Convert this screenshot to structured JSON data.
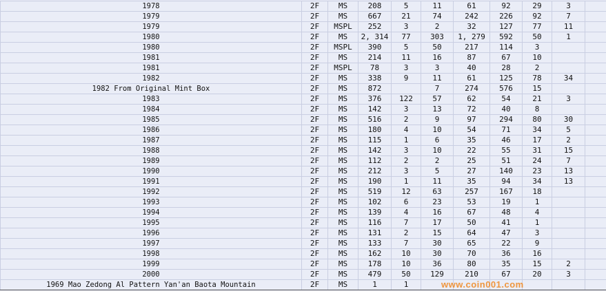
{
  "rows": [
    [
      "1978",
      "2F",
      "MS",
      "208",
      "5",
      "11",
      "61",
      "92",
      "29",
      "3"
    ],
    [
      "1979",
      "2F",
      "MS",
      "667",
      "21",
      "74",
      "242",
      "226",
      "92",
      "7"
    ],
    [
      "1979",
      "2F",
      "MSPL",
      "252",
      "3",
      "2",
      "32",
      "127",
      "77",
      "11"
    ],
    [
      "1980",
      "2F",
      "MS",
      "2, 314",
      "77",
      "303",
      "1, 279",
      "592",
      "50",
      "1"
    ],
    [
      "1980",
      "2F",
      "MSPL",
      "390",
      "5",
      "50",
      "217",
      "114",
      "3",
      ""
    ],
    [
      "1981",
      "2F",
      "MS",
      "214",
      "11",
      "16",
      "87",
      "67",
      "10",
      ""
    ],
    [
      "1981",
      "2F",
      "MSPL",
      "78",
      "3",
      "3",
      "40",
      "28",
      "2",
      ""
    ],
    [
      "1982",
      "2F",
      "MS",
      "338",
      "9",
      "11",
      "61",
      "125",
      "78",
      "34"
    ],
    [
      "1982 From Original Mint Box",
      "2F",
      "MS",
      "872",
      "",
      "7",
      "274",
      "576",
      "15",
      ""
    ],
    [
      "1983",
      "2F",
      "MS",
      "376",
      "122",
      "57",
      "62",
      "54",
      "21",
      "3"
    ],
    [
      "1984",
      "2F",
      "MS",
      "142",
      "3",
      "13",
      "72",
      "40",
      "8",
      ""
    ],
    [
      "1985",
      "2F",
      "MS",
      "516",
      "2",
      "9",
      "97",
      "294",
      "80",
      "30"
    ],
    [
      "1986",
      "2F",
      "MS",
      "180",
      "4",
      "10",
      "54",
      "71",
      "34",
      "5"
    ],
    [
      "1987",
      "2F",
      "MS",
      "115",
      "1",
      "6",
      "35",
      "46",
      "17",
      "2"
    ],
    [
      "1988",
      "2F",
      "MS",
      "142",
      "3",
      "10",
      "22",
      "55",
      "31",
      "15"
    ],
    [
      "1989",
      "2F",
      "MS",
      "112",
      "2",
      "2",
      "25",
      "51",
      "24",
      "7"
    ],
    [
      "1990",
      "2F",
      "MS",
      "212",
      "3",
      "5",
      "27",
      "140",
      "23",
      "13"
    ],
    [
      "1991",
      "2F",
      "MS",
      "190",
      "1",
      "11",
      "35",
      "94",
      "34",
      "13"
    ],
    [
      "1992",
      "2F",
      "MS",
      "519",
      "12",
      "63",
      "257",
      "167",
      "18",
      ""
    ],
    [
      "1993",
      "2F",
      "MS",
      "102",
      "6",
      "23",
      "53",
      "19",
      "1",
      ""
    ],
    [
      "1994",
      "2F",
      "MS",
      "139",
      "4",
      "16",
      "67",
      "48",
      "4",
      ""
    ],
    [
      "1995",
      "2F",
      "MS",
      "116",
      "7",
      "17",
      "50",
      "41",
      "1",
      ""
    ],
    [
      "1996",
      "2F",
      "MS",
      "131",
      "2",
      "15",
      "64",
      "47",
      "3",
      ""
    ],
    [
      "1997",
      "2F",
      "MS",
      "133",
      "7",
      "30",
      "65",
      "22",
      "9",
      ""
    ],
    [
      "1998",
      "2F",
      "MS",
      "162",
      "10",
      "30",
      "70",
      "36",
      "16",
      ""
    ],
    [
      "1999",
      "2F",
      "MS",
      "178",
      "10",
      "36",
      "80",
      "35",
      "15",
      "2"
    ],
    [
      "2000",
      "2F",
      "MS",
      "479",
      "50",
      "129",
      "210",
      "67",
      "20",
      "3"
    ],
    [
      "1969 Mao Zedong Al Pattern Yan'an Baota Mountain",
      "2F",
      "MS",
      "1",
      "1",
      "",
      "",
      "",
      "",
      ""
    ]
  ],
  "watermark": "www.coin001.com",
  "colors": {
    "background": "#eaedf7",
    "grid": "#c9cee2",
    "watermark": "#f08c28"
  }
}
